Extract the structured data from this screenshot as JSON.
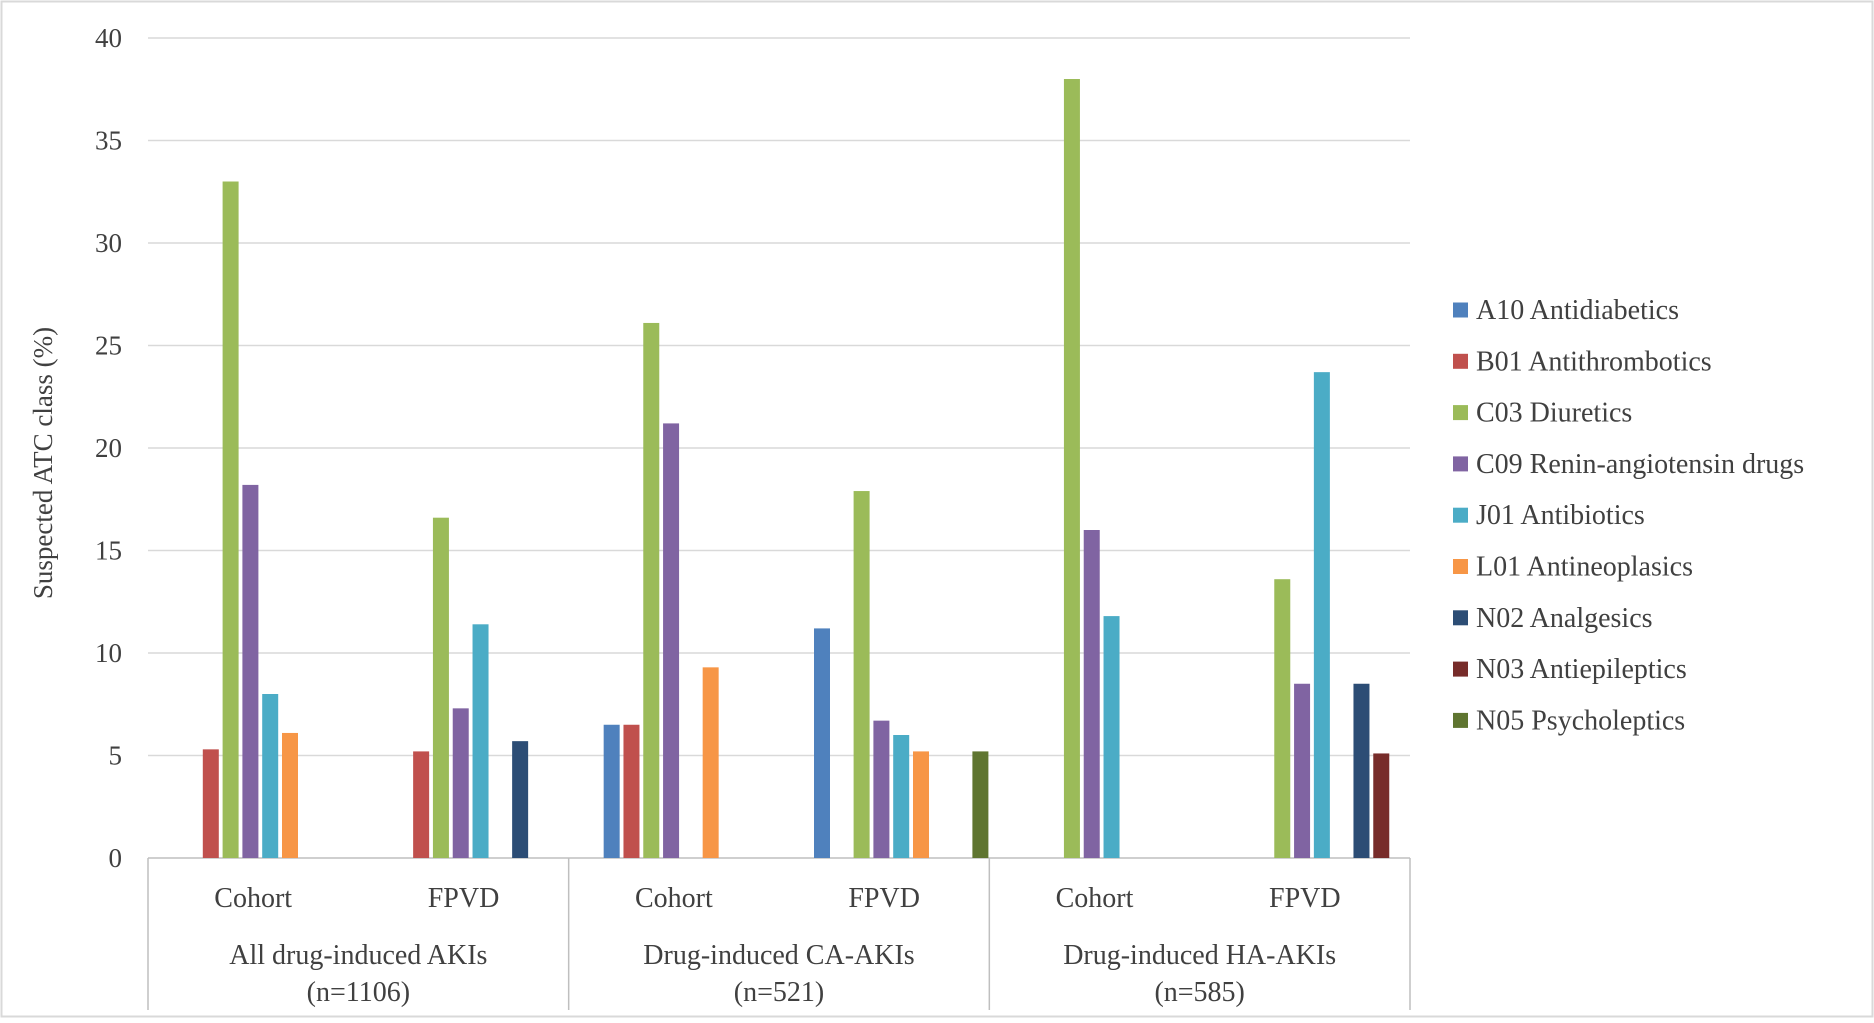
{
  "chart_data": {
    "type": "bar",
    "title": "",
    "ylabel": "Suspected ATC class (%)",
    "xlabel": "",
    "ylim": [
      0,
      40
    ],
    "yticks": [
      0,
      5,
      10,
      15,
      20,
      25,
      30,
      35,
      40
    ],
    "grid": true,
    "legend_position": "right",
    "groups": [
      {
        "label_line1": "All drug-induced AKIs",
        "label_line2": "(n=1106)"
      },
      {
        "label_line1": "Drug-induced CA-AKIs",
        "label_line2": "(n=521)"
      },
      {
        "label_line1": "Drug-induced HA-AKIs",
        "label_line2": "(n=585)"
      }
    ],
    "categories": [
      "Cohort",
      "FPVD",
      "Cohort",
      "FPVD",
      "Cohort",
      "FPVD"
    ],
    "series": [
      {
        "name": "A10 Antidiabetics",
        "color": "#4f81bd",
        "values": [
          null,
          null,
          6.5,
          11.2,
          null,
          null
        ]
      },
      {
        "name": "B01 Antithrombotics",
        "color": "#c0504d",
        "values": [
          5.3,
          5.2,
          6.5,
          null,
          null,
          null
        ]
      },
      {
        "name": "C03 Diuretics",
        "color": "#9bbb59",
        "values": [
          33.0,
          16.6,
          26.1,
          17.9,
          38.0,
          13.6
        ]
      },
      {
        "name": "C09 Renin-angiotensin drugs",
        "color": "#8064a2",
        "values": [
          18.2,
          7.3,
          21.2,
          6.7,
          16.0,
          8.5
        ]
      },
      {
        "name": "J01 Antibiotics",
        "color": "#4bacc6",
        "values": [
          8.0,
          11.4,
          null,
          6.0,
          11.8,
          23.7
        ]
      },
      {
        "name": "L01 Antineoplasics",
        "color": "#f79646",
        "values": [
          6.1,
          null,
          9.3,
          5.2,
          null,
          null
        ]
      },
      {
        "name": "N02 Analgesics",
        "color": "#2c4d75",
        "values": [
          null,
          5.7,
          null,
          null,
          null,
          8.5
        ]
      },
      {
        "name": "N03 Antiepileptics",
        "color": "#772c2a",
        "values": [
          null,
          null,
          null,
          null,
          null,
          5.1
        ]
      },
      {
        "name": "N05 Psycholeptics",
        "color": "#5f7530",
        "values": [
          null,
          null,
          null,
          5.2,
          null,
          null
        ]
      }
    ]
  }
}
